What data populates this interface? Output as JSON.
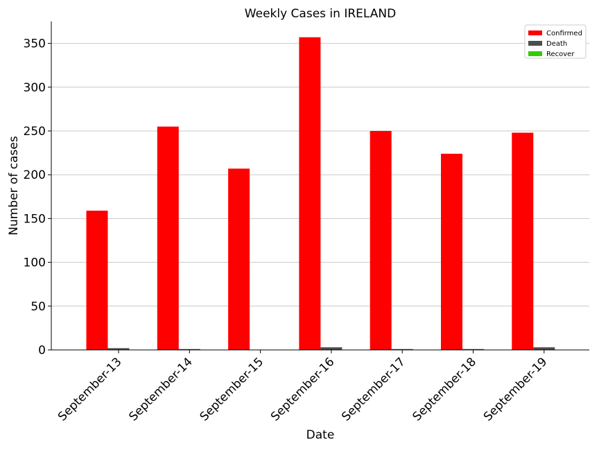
{
  "chart_data": {
    "type": "bar",
    "title": "Weekly Cases in IRELAND",
    "xlabel": "Date",
    "ylabel": "Number of cases",
    "categories": [
      "September-13",
      "September-14",
      "September-15",
      "September-16",
      "September-17",
      "September-18",
      "September-19"
    ],
    "series": [
      {
        "name": "Confirmed",
        "color": "#ff0000",
        "values": [
          159,
          255,
          207,
          357,
          250,
          224,
          248
        ]
      },
      {
        "name": "Death",
        "color": "#4d4d4d",
        "values": [
          2,
          1,
          0,
          3,
          1,
          1,
          3
        ]
      },
      {
        "name": "Recover",
        "color": "#33cc00",
        "values": [
          0,
          0,
          0,
          0,
          0,
          0,
          0
        ]
      }
    ],
    "ylim": [
      0,
      375
    ],
    "yticks": [
      0,
      50,
      100,
      150,
      200,
      250,
      300,
      350
    ],
    "grid": "horizontal",
    "legend_position": "top-right"
  }
}
